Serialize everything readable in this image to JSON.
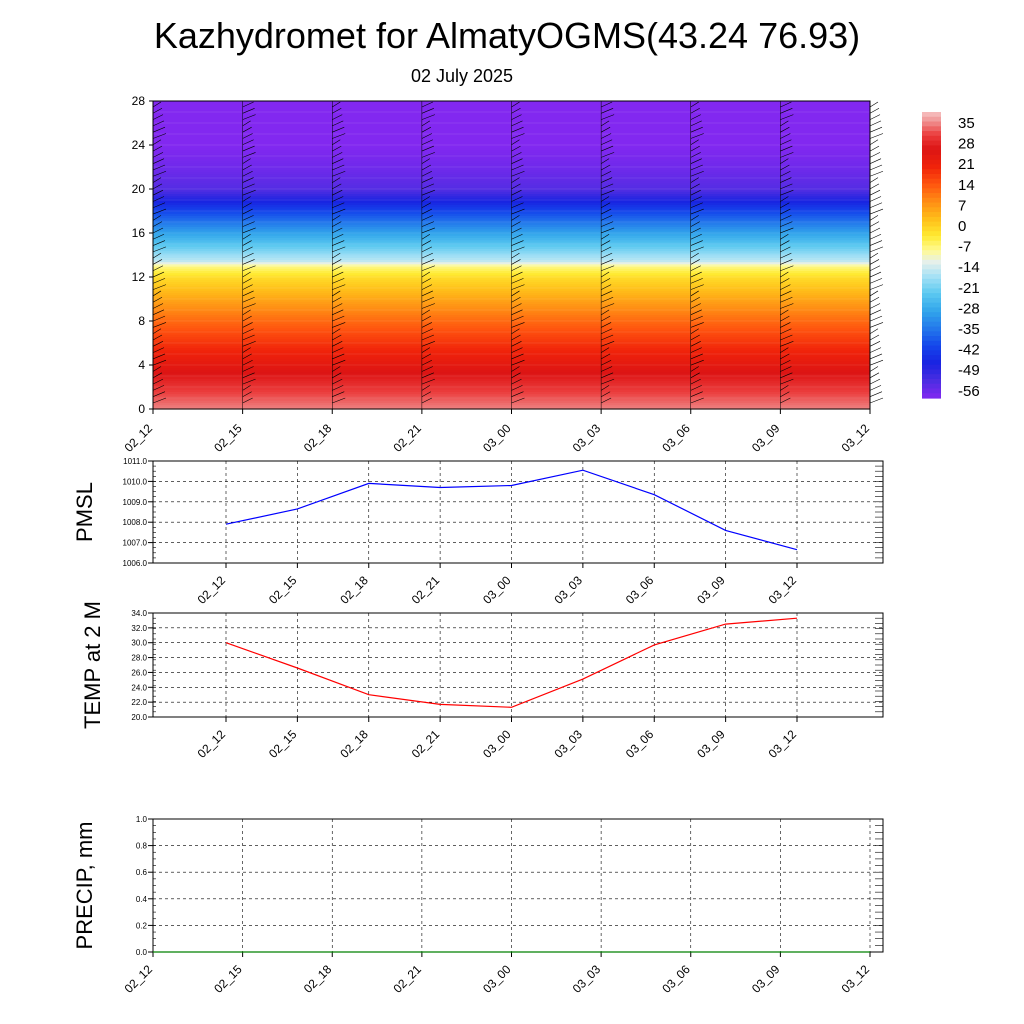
{
  "title": "Kazhydromet for AlmatyOGMS(43.24 76.93)",
  "subtitle": "02 July 2025",
  "colors": {
    "pmsl_line": "#0000ff",
    "temp_line": "#ff0000",
    "precip_line": "#008000",
    "grid": "#000000"
  },
  "chart_data": [
    {
      "type": "heatmap",
      "name": "vertical_cross_section",
      "x_ticks": [
        "02_12",
        "02_15",
        "02_18",
        "02_21",
        "03_00",
        "03_03",
        "03_06",
        "03_09",
        "03_12"
      ],
      "y_ticks": [
        0,
        4,
        8,
        12,
        16,
        20,
        24,
        28
      ],
      "ylim": [
        0,
        28
      ],
      "colorbar_labels": [
        "35",
        "28",
        "21",
        "14",
        "7",
        "0",
        "-7",
        "-14",
        "-21",
        "-28",
        "-35",
        "-42",
        "-49",
        "-56"
      ],
      "colorbar_range": [
        -60,
        39
      ],
      "profile": [
        {
          "h": 0,
          "t": 35
        },
        {
          "h": 2,
          "t": 30
        },
        {
          "h": 4,
          "t": 24
        },
        {
          "h": 6,
          "t": 18
        },
        {
          "h": 8,
          "t": 12
        },
        {
          "h": 10,
          "t": 5
        },
        {
          "h": 12,
          "t": -2
        },
        {
          "h": 13,
          "t": -8
        },
        {
          "h": 13.5,
          "t": -16
        },
        {
          "h": 16,
          "t": -30
        },
        {
          "h": 18,
          "t": -42
        },
        {
          "h": 20,
          "t": -55
        },
        {
          "h": 22,
          "t": -58
        },
        {
          "h": 24,
          "t": -60
        },
        {
          "h": 28,
          "t": -60
        }
      ],
      "grid": "off",
      "legend": "right"
    },
    {
      "type": "line",
      "name": "pmsl",
      "ylabel": "PMSL",
      "x": [
        "02_12",
        "02_15",
        "02_18",
        "02_21",
        "03_00",
        "03_03",
        "03_06",
        "03_09",
        "03_12"
      ],
      "values": [
        1007.9,
        1008.65,
        1009.9,
        1009.7,
        1009.8,
        1010.55,
        1009.35,
        1007.6,
        1006.65
      ],
      "ylim": [
        1006.0,
        1011.0
      ],
      "y_ticks": [
        "1006.0",
        "1007.0",
        "1008.0",
        "1009.0",
        "1010.0",
        "1011.0"
      ],
      "grid": "on"
    },
    {
      "type": "line",
      "name": "temp2m",
      "ylabel": "TEMP at 2 M",
      "x": [
        "02_12",
        "02_15",
        "02_18",
        "02_21",
        "03_00",
        "03_03",
        "03_06",
        "03_09",
        "03_12"
      ],
      "values": [
        30.0,
        26.6,
        23.0,
        21.7,
        21.3,
        25.1,
        29.7,
        32.5,
        33.3
      ],
      "ylim": [
        20.0,
        34.0
      ],
      "y_ticks": [
        "20.0",
        "22.0",
        "24.0",
        "26.0",
        "28.0",
        "30.0",
        "32.0",
        "34.0"
      ],
      "grid": "on"
    },
    {
      "type": "line",
      "name": "precip",
      "ylabel": "PRECIP, mm",
      "x": [
        "02_12",
        "02_15",
        "02_18",
        "02_21",
        "03_00",
        "03_03",
        "03_06",
        "03_09",
        "03_12"
      ],
      "values": [
        0,
        0,
        0,
        0,
        0,
        0,
        0,
        0,
        0
      ],
      "ylim": [
        0.0,
        1.0
      ],
      "y_ticks": [
        "0.0",
        "0.2",
        "0.4",
        "0.6",
        "0.8",
        "1.0"
      ],
      "grid": "on"
    }
  ]
}
